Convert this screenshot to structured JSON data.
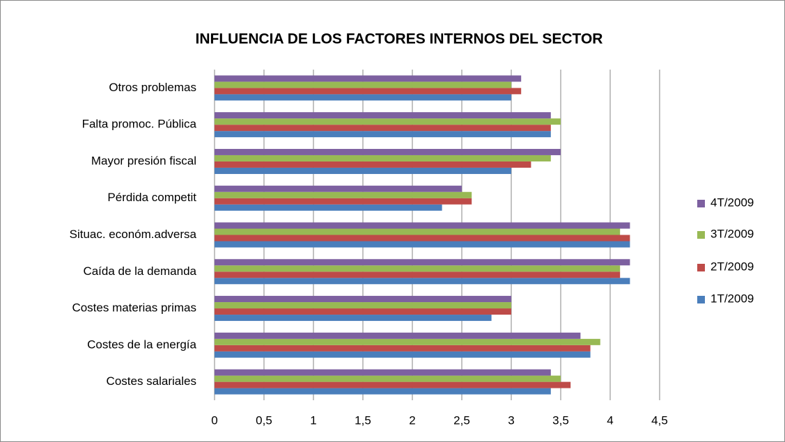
{
  "chart_data": {
    "type": "bar",
    "orientation": "horizontal",
    "title": "INFLUENCIA DE LOS FACTORES INTERNOS DEL SECTOR",
    "categories": [
      "Otros problemas",
      "Falta promoc. Pública",
      "Mayor presión fiscal",
      "Pérdida competit",
      "Situac. económ.adversa",
      "Caída de la demanda",
      "Costes materias primas",
      "Costes de la energía",
      "Costes salariales"
    ],
    "series": [
      {
        "name": "1T/2009",
        "color": "#4a7ebb",
        "values": [
          3.0,
          3.4,
          3.0,
          2.3,
          4.2,
          4.2,
          2.8,
          3.8,
          3.4
        ]
      },
      {
        "name": "2T/2009",
        "color": "#be4b48",
        "values": [
          3.1,
          3.4,
          3.2,
          2.6,
          4.2,
          4.1,
          3.0,
          3.8,
          3.6
        ]
      },
      {
        "name": "3T/2009",
        "color": "#98b954",
        "values": [
          3.0,
          3.5,
          3.4,
          2.6,
          4.1,
          4.1,
          3.0,
          3.9,
          3.5
        ]
      },
      {
        "name": "4T/2009",
        "color": "#7d60a0",
        "values": [
          3.1,
          3.4,
          3.5,
          2.5,
          4.2,
          4.2,
          3.0,
          3.7,
          3.4
        ]
      }
    ],
    "xlim": [
      0,
      4.5
    ],
    "xticks": [
      0,
      {
        "value": 0.5,
        "label": "0,5"
      },
      1,
      {
        "value": 1.5,
        "label": "1,5"
      },
      2,
      {
        "value": 2.5,
        "label": "2,5"
      },
      3,
      {
        "value": 3.5,
        "label": "3,5"
      },
      4,
      {
        "value": 4.5,
        "label": "4,5"
      }
    ],
    "grid": true,
    "legend": "right"
  }
}
